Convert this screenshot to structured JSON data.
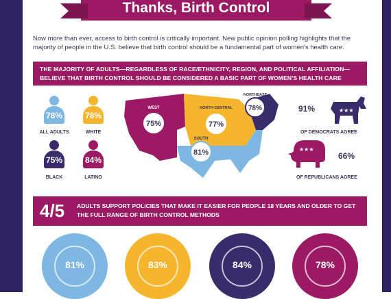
{
  "title": "Thanks, Birth Control",
  "intro": "Now more than ever, access to birth control is critically important. New public opinion polling highlights that the majority of people in the U.S. believe that birth control should be a fundamental part of women's health care.",
  "section1_heading": "THE MAJORITY OF ADULTS—REGARDLESS OF RACE/ETHNICITY, REGION, AND POLITICAL AFFILIATION—BELIEVE THAT BIRTH CONTROL SHOULD BE CONSIDERED A BASIC PART OF WOMEN'S HEALTH CARE",
  "groups": [
    {
      "label": "ALL ADULTS",
      "value": "78%",
      "color": "#7fb7e3"
    },
    {
      "label": "WHITE",
      "value": "78%",
      "color": "#f5b52d"
    },
    {
      "label": "BLACK",
      "value": "75%",
      "color": "#3a2c6b"
    },
    {
      "label": "LATINO",
      "value": "84%",
      "color": "#9b1a63"
    }
  ],
  "regions": [
    {
      "name": "WEST",
      "value": "75%"
    },
    {
      "name": "NORTH-CENTRAL",
      "value": "77%"
    },
    {
      "name": "NORTHEAST",
      "value": "78%"
    },
    {
      "name": "SOUTH",
      "value": "81%"
    }
  ],
  "parties": [
    {
      "value": "91%",
      "label": "OF DEMOCRATS AGREE",
      "color": "#3a2c6b"
    },
    {
      "value": "66%",
      "label": "OF REPUBLICANS AGREE",
      "color": "#9b1a63"
    }
  ],
  "section2_fraction": "4/5",
  "section2_text": "ADULTS SUPPORT POLICIES THAT MAKE IT EASIER FOR PEOPLE 18 YEARS AND OLDER TO GET THE FULL RANGE OF BIRTH CONTROL METHODS",
  "donuts": [
    {
      "value": "81%",
      "color": "#7fb7e3"
    },
    {
      "value": "83%",
      "color": "#f5b52d"
    },
    {
      "value": "84%",
      "color": "#3a2c6b"
    },
    {
      "value": "78%",
      "color": "#9b1a63"
    }
  ]
}
